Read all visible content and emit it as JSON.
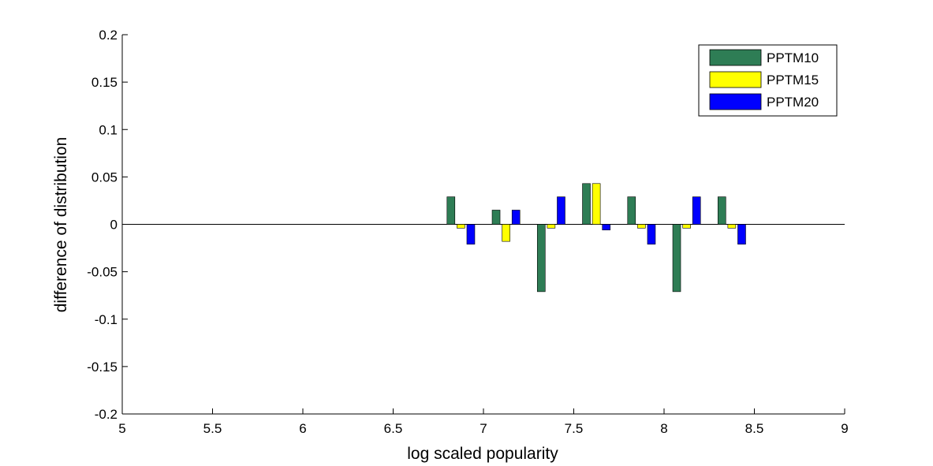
{
  "chart_data": {
    "type": "bar",
    "xlabel": "log scaled popularity",
    "ylabel": "difference of distribution",
    "xlim": [
      5,
      9
    ],
    "ylim": [
      -0.2,
      0.2
    ],
    "xticks": [
      "5",
      "5.5",
      "6",
      "6.5",
      "7",
      "7.5",
      "8",
      "8.5",
      "9"
    ],
    "yticks": [
      "0.2",
      "0.15",
      "0.1",
      "0.05",
      "0",
      "-0.05",
      "-0.1",
      "-0.15",
      "-0.2"
    ],
    "grid": false,
    "legend_position": "top-right",
    "x": [
      6.875,
      7.125,
      7.375,
      7.625,
      7.875,
      8.125,
      8.375
    ],
    "series": [
      {
        "name": "PPTM10",
        "color": "#2E7D55",
        "values": [
          0.029,
          0.015,
          -0.071,
          0.043,
          0.029,
          -0.071,
          0.029
        ]
      },
      {
        "name": "PPTM15",
        "color": "#FFFF00",
        "values": [
          -0.004,
          -0.018,
          -0.004,
          0.043,
          -0.004,
          -0.004,
          -0.004
        ]
      },
      {
        "name": "PPTM20",
        "color": "#0000FF",
        "values": [
          -0.021,
          0.015,
          0.029,
          -0.006,
          -0.021,
          0.029,
          -0.021
        ]
      }
    ]
  }
}
